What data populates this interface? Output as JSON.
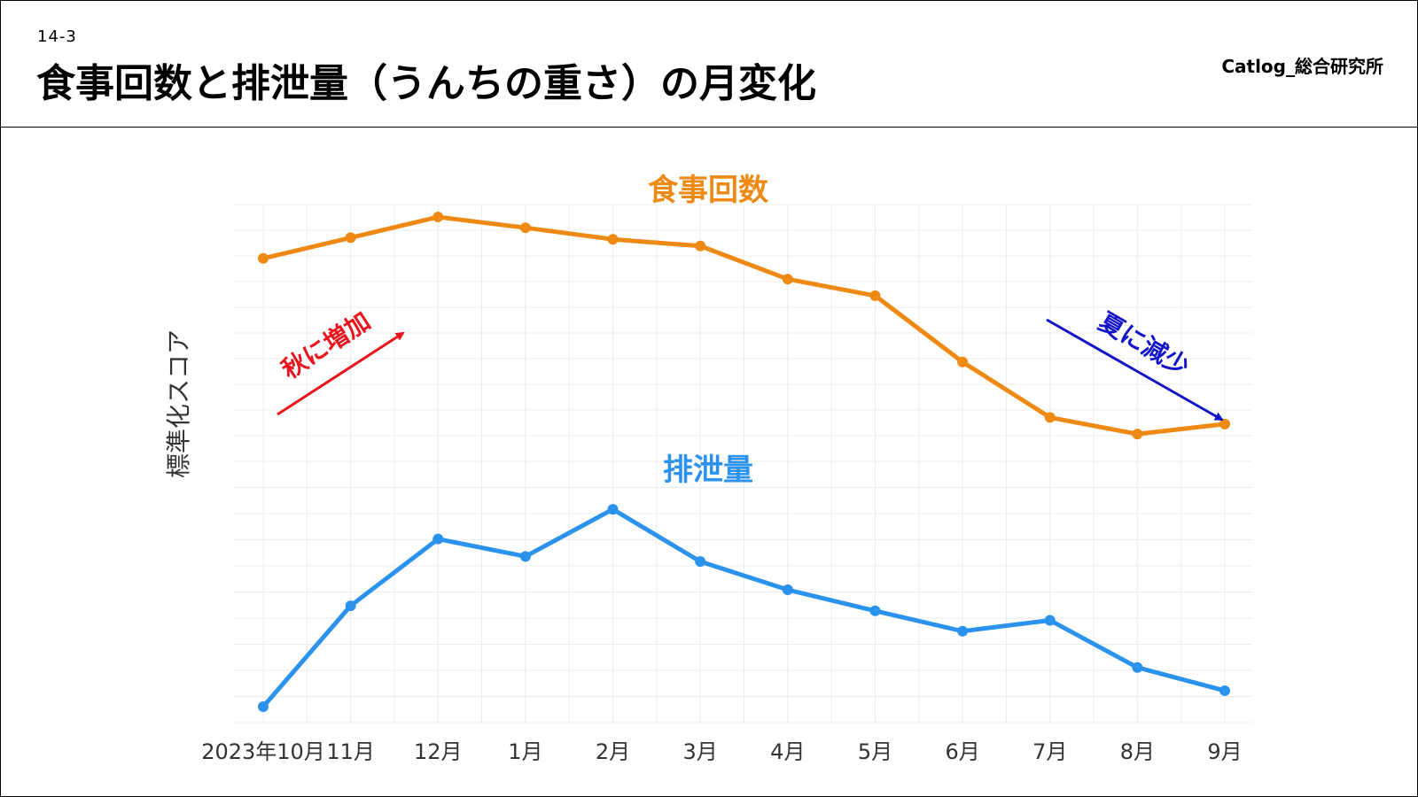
{
  "header": {
    "slide_number": "14-3",
    "title": "食事回数と排泄量（うんちの重さ）の月変化",
    "brand": "Catlog_総合研究所"
  },
  "colors": {
    "meals": "#ee8a14",
    "excretion": "#2b92ee",
    "increase_arrow": "#e8141e",
    "decrease_arrow": "#1414c8"
  },
  "chart_data": [
    {
      "type": "line",
      "title": "",
      "ylabel": "標準化スコア",
      "categories": [
        "2023年10月",
        "11月",
        "12月",
        "1月",
        "2月",
        "3月",
        "4月",
        "5月",
        "6月",
        "7月",
        "8月",
        "9月"
      ],
      "ylim": [
        -1.7,
        1.4
      ],
      "grid": true,
      "series": [
        {
          "name": "食事回数",
          "values": [
            0.75,
            1.0,
            1.25,
            1.12,
            0.98,
            0.9,
            0.5,
            0.3,
            -0.5,
            -1.17,
            -1.37,
            -1.25
          ]
        }
      ],
      "annotations": [
        {
          "text": "秋に増加",
          "direction": "up"
        },
        {
          "text": "夏に減少",
          "direction": "down"
        }
      ]
    },
    {
      "type": "line",
      "title": "",
      "categories": [
        "2023年10月",
        "11月",
        "12月",
        "1月",
        "2月",
        "3月",
        "4月",
        "5月",
        "6月",
        "7月",
        "8月",
        "9月"
      ],
      "ylim": [
        -1.5,
        2.1
      ],
      "grid": true,
      "series": [
        {
          "name": "排泄量",
          "values": [
            -1.28,
            0.11,
            1.03,
            0.79,
            1.44,
            0.72,
            0.33,
            0.04,
            -0.24,
            -0.09,
            -0.74,
            -1.06
          ]
        }
      ]
    }
  ]
}
